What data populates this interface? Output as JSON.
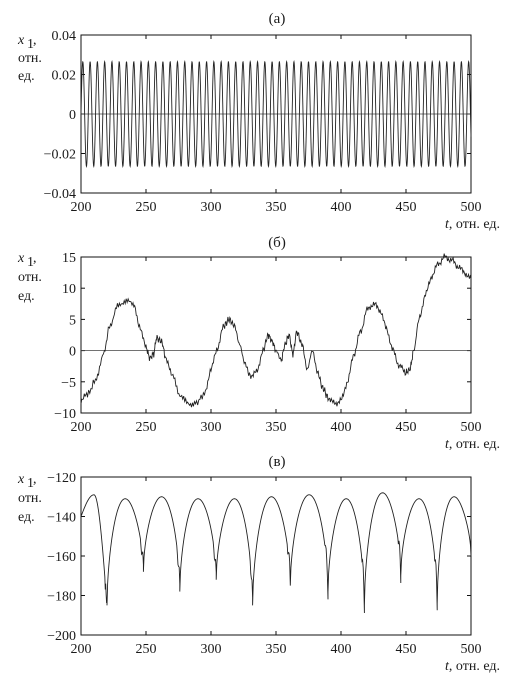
{
  "chart_data": [
    {
      "type": "line",
      "title": "(а)",
      "xlabel_var": "t",
      "xlabel_unit": ", отн. ед.",
      "ylabel_var": "x",
      "ylabel_sub": "1",
      "ylabel_line1": ",",
      "ylabel_line2": "отн.",
      "ylabel_line3": "ед.",
      "xlim": [
        200,
        500
      ],
      "ylim": [
        -0.04,
        0.04
      ],
      "xticks": [
        200,
        250,
        300,
        350,
        400,
        450,
        500
      ],
      "yticks": [
        -0.04,
        -0.02,
        0,
        0.02,
        0.04
      ],
      "ytick_labels": [
        "−0.04",
        "−0.02",
        "0",
        "0.02",
        "0.04"
      ],
      "zero_line": true,
      "series": [
        {
          "kind": "sine",
          "x_start": 200,
          "x_end": 500,
          "period": 5.6,
          "amplitude": 0.0265,
          "phase": 0.0
        }
      ]
    },
    {
      "type": "line",
      "title": "(б)",
      "xlabel_var": "t",
      "xlabel_unit": ", отн. ед.",
      "ylabel_var": "x",
      "ylabel_sub": "1",
      "ylabel_line1": ",",
      "ylabel_line2": "отн.",
      "ylabel_line3": "ед.",
      "xlim": [
        200,
        500
      ],
      "ylim": [
        -10,
        15
      ],
      "xticks": [
        200,
        250,
        300,
        350,
        400,
        450,
        500
      ],
      "yticks": [
        -10,
        -5,
        0,
        5,
        10,
        15
      ],
      "ytick_labels": [
        "−10",
        "−5",
        "0",
        "5",
        "10",
        "15"
      ],
      "zero_line": true,
      "series": [
        {
          "kind": "points",
          "x": [
            200,
            205,
            212,
            218,
            222,
            228,
            234,
            240,
            245,
            250,
            253,
            256,
            258,
            262,
            265,
            270,
            276,
            282,
            288,
            295,
            300,
            305,
            310,
            314,
            318,
            322,
            326,
            330,
            335,
            340,
            344,
            347,
            350,
            354,
            357,
            360,
            363,
            366,
            370,
            374,
            378,
            382,
            386,
            390,
            395,
            400,
            405,
            410,
            415,
            420,
            425,
            430,
            435,
            440,
            445,
            450,
            453,
            456,
            460,
            465,
            470,
            475,
            480,
            485,
            490,
            495,
            500
          ],
          "y": [
            -8,
            -7,
            -4.5,
            0,
            4,
            7,
            8,
            7.5,
            4,
            0.5,
            -1.2,
            -0.5,
            2,
            1.5,
            -1,
            -4,
            -7,
            -8.5,
            -8.5,
            -7,
            -3,
            0.5,
            4,
            5,
            4,
            1,
            -2,
            -4,
            -3.5,
            0,
            2.5,
            1.5,
            0,
            -1.5,
            1,
            2.5,
            -0.5,
            3,
            1,
            -3,
            0,
            -3.5,
            -6,
            -7.5,
            -8.5,
            -8,
            -5,
            -0.5,
            3,
            6.5,
            7.5,
            6.5,
            3.5,
            0,
            -2.5,
            -3.5,
            -3,
            0,
            5,
            9,
            12,
            14,
            15,
            14.5,
            13.5,
            12.5,
            11.5
          ]
        }
      ]
    },
    {
      "type": "line",
      "title": "(в)",
      "xlabel_var": "t",
      "xlabel_unit": ", отн. ед.",
      "ylabel_var": "x",
      "ylabel_sub": "1",
      "ylabel_line1": ",",
      "ylabel_line2": "отн.",
      "ylabel_line3": "ед.",
      "xlim": [
        200,
        500
      ],
      "ylim": [
        -200,
        -120
      ],
      "xticks": [
        200,
        250,
        300,
        350,
        400,
        450,
        500
      ],
      "yticks": [
        -200,
        -180,
        -160,
        -140,
        -120
      ],
      "ytick_labels": [
        "−200",
        "−180",
        "−160",
        "−140",
        "−120"
      ],
      "zero_line": false,
      "series": [
        {
          "kind": "arches",
          "cusps": [
            220,
            248,
            276,
            304,
            332,
            361,
            390,
            418,
            446,
            474
          ],
          "cusp_values": [
            -185,
            -168,
            -178,
            -172,
            -185,
            -175,
            -178,
            -185,
            -170,
            -184
          ],
          "peak_value": -129,
          "peak_values": [
            -129,
            -131,
            -130,
            -131,
            -131,
            -130,
            -129,
            -131,
            -128,
            -131,
            -130
          ]
        }
      ]
    }
  ]
}
